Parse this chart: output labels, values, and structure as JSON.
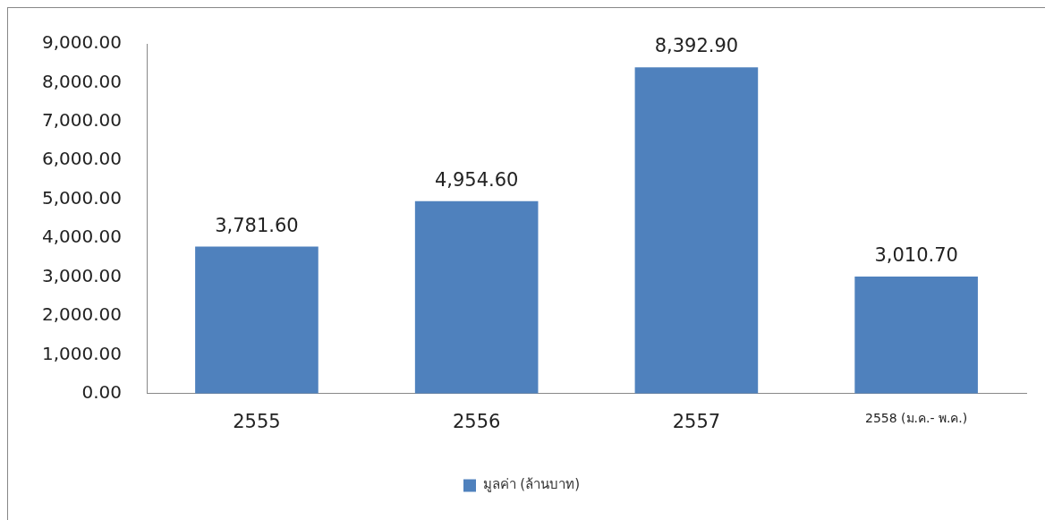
{
  "chart_data": {
    "type": "bar",
    "categories": [
      "2555",
      "2556",
      "2557",
      "2558 (ม.ค.- พ.ค.)"
    ],
    "series": [
      {
        "name": "มูลค่า (ล้านบาท)",
        "color": "#4f81bd",
        "values": [
          3781.6,
          4954.6,
          8392.9,
          3010.7
        ],
        "value_labels": [
          "3,781.60",
          "4,954.60",
          "8,392.90",
          "3,010.70"
        ]
      }
    ],
    "ylim": [
      0,
      9000
    ],
    "yticks": [
      {
        "value": 0,
        "label": "0.00"
      },
      {
        "value": 1000,
        "label": "1,000.00"
      },
      {
        "value": 2000,
        "label": "2,000.00"
      },
      {
        "value": 3000,
        "label": "3,000.00"
      },
      {
        "value": 4000,
        "label": "4,000.00"
      },
      {
        "value": 5000,
        "label": "5,000.00"
      },
      {
        "value": 6000,
        "label": "6,000.00"
      },
      {
        "value": 7000,
        "label": "7,000.00"
      },
      {
        "value": 8000,
        "label": "8,000.00"
      },
      {
        "value": 9000,
        "label": "9,000.00"
      }
    ],
    "grid": false,
    "legend": "bottom"
  }
}
